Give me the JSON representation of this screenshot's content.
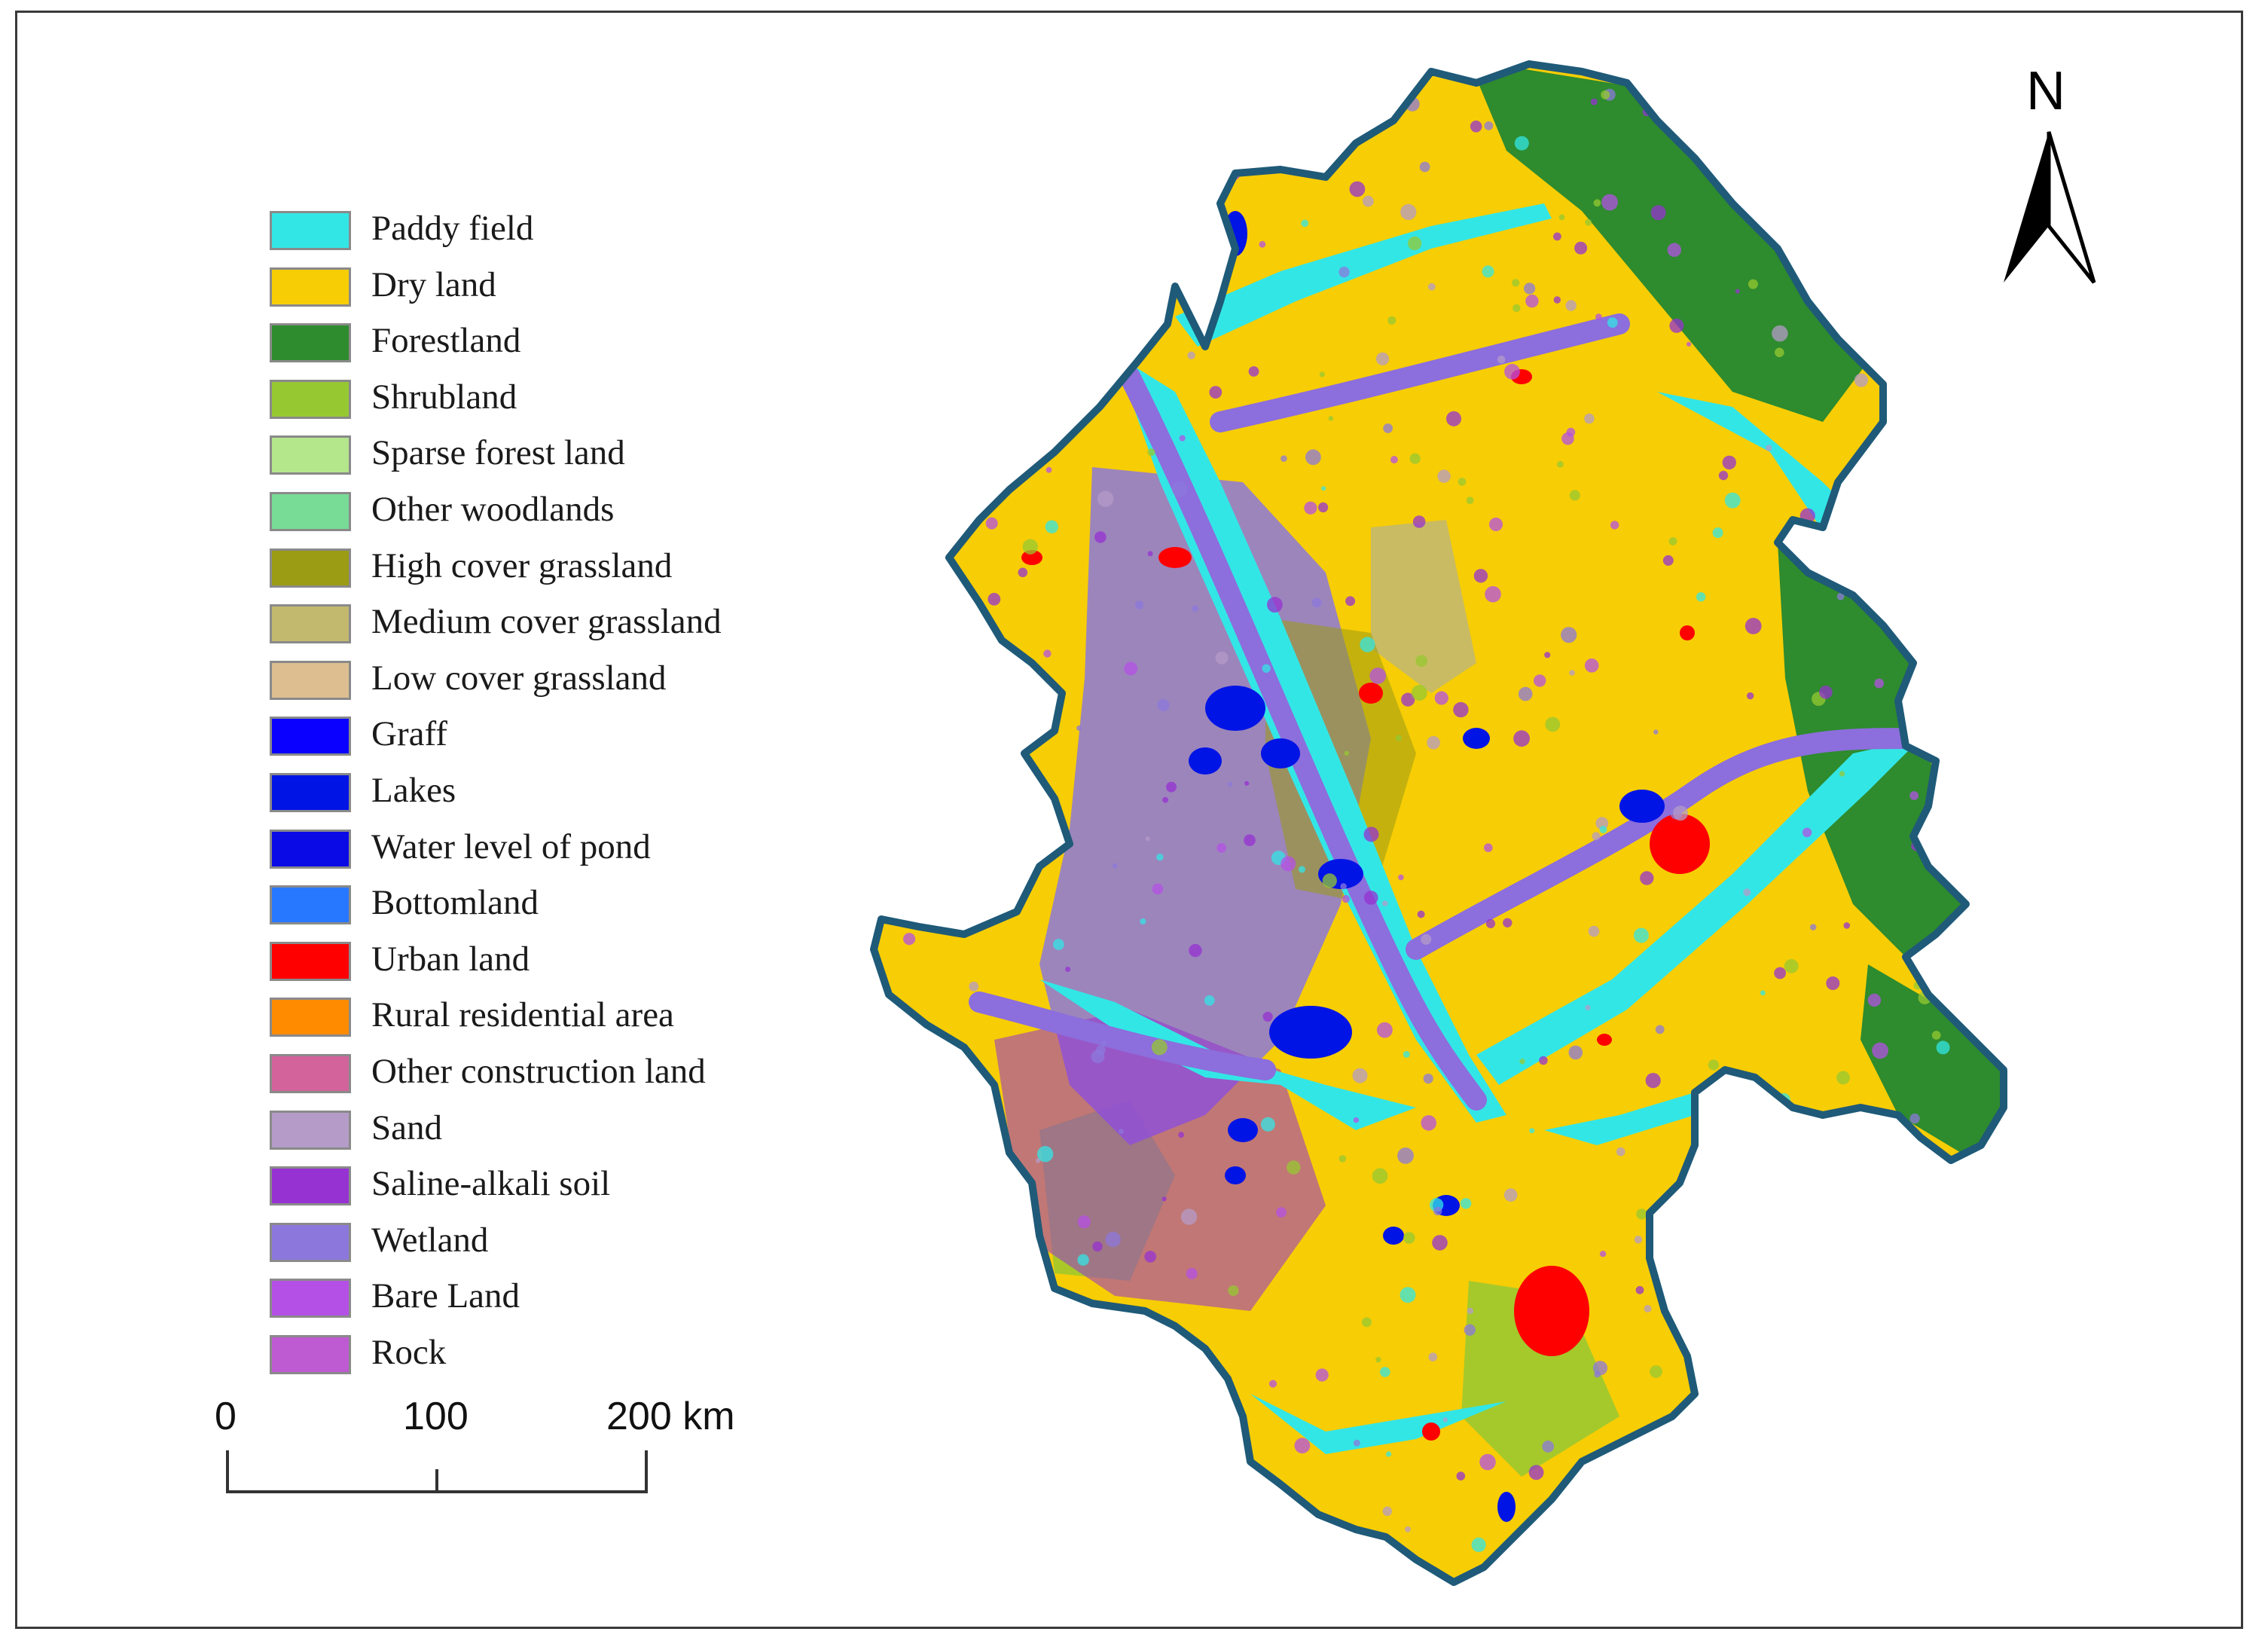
{
  "map": {
    "north_label": "N",
    "legend": [
      {
        "label": "Paddy field",
        "color": "#33e6e6"
      },
      {
        "label": "Dry land",
        "color": "#f7cd05"
      },
      {
        "label": "Forestland",
        "color": "#2e8b2e"
      },
      {
        "label": "Shrubland",
        "color": "#96c832"
      },
      {
        "label": "Sparse forest land",
        "color": "#b4e68c"
      },
      {
        "label": "Other woodlands",
        "color": "#78dc96"
      },
      {
        "label": "High cover grassland",
        "color": "#9b9b14"
      },
      {
        "label": "Medium cover grassland",
        "color": "#c3b96e"
      },
      {
        "label": "Low cover grassland",
        "color": "#dcbe91"
      },
      {
        "label": "Graff",
        "color": "#0a00ff"
      },
      {
        "label": "Lakes",
        "color": "#0014e6"
      },
      {
        "label": "Water level of pond",
        "color": "#0a0ae6"
      },
      {
        "label": "Bottomland",
        "color": "#2878ff"
      },
      {
        "label": "Urban land",
        "color": "#ff0000"
      },
      {
        "label": "Rural residential area",
        "color": "#ff8c00"
      },
      {
        "label": "Other construction land",
        "color": "#d2649b"
      },
      {
        "label": "Sand",
        "color": "#b49bc8"
      },
      {
        "label": "Saline-alkali soil",
        "color": "#9632d2"
      },
      {
        "label": "Wetland",
        "color": "#8c78dc"
      },
      {
        "label": "Bare Land",
        "color": "#b450e6"
      },
      {
        "label": "Rock",
        "color": "#be5ad2"
      }
    ],
    "scale_bar": {
      "labels": [
        "0",
        "100",
        "200 km"
      ]
    },
    "colors": {
      "boundary": "#1f5a78",
      "river": "#8c6edc"
    }
  }
}
